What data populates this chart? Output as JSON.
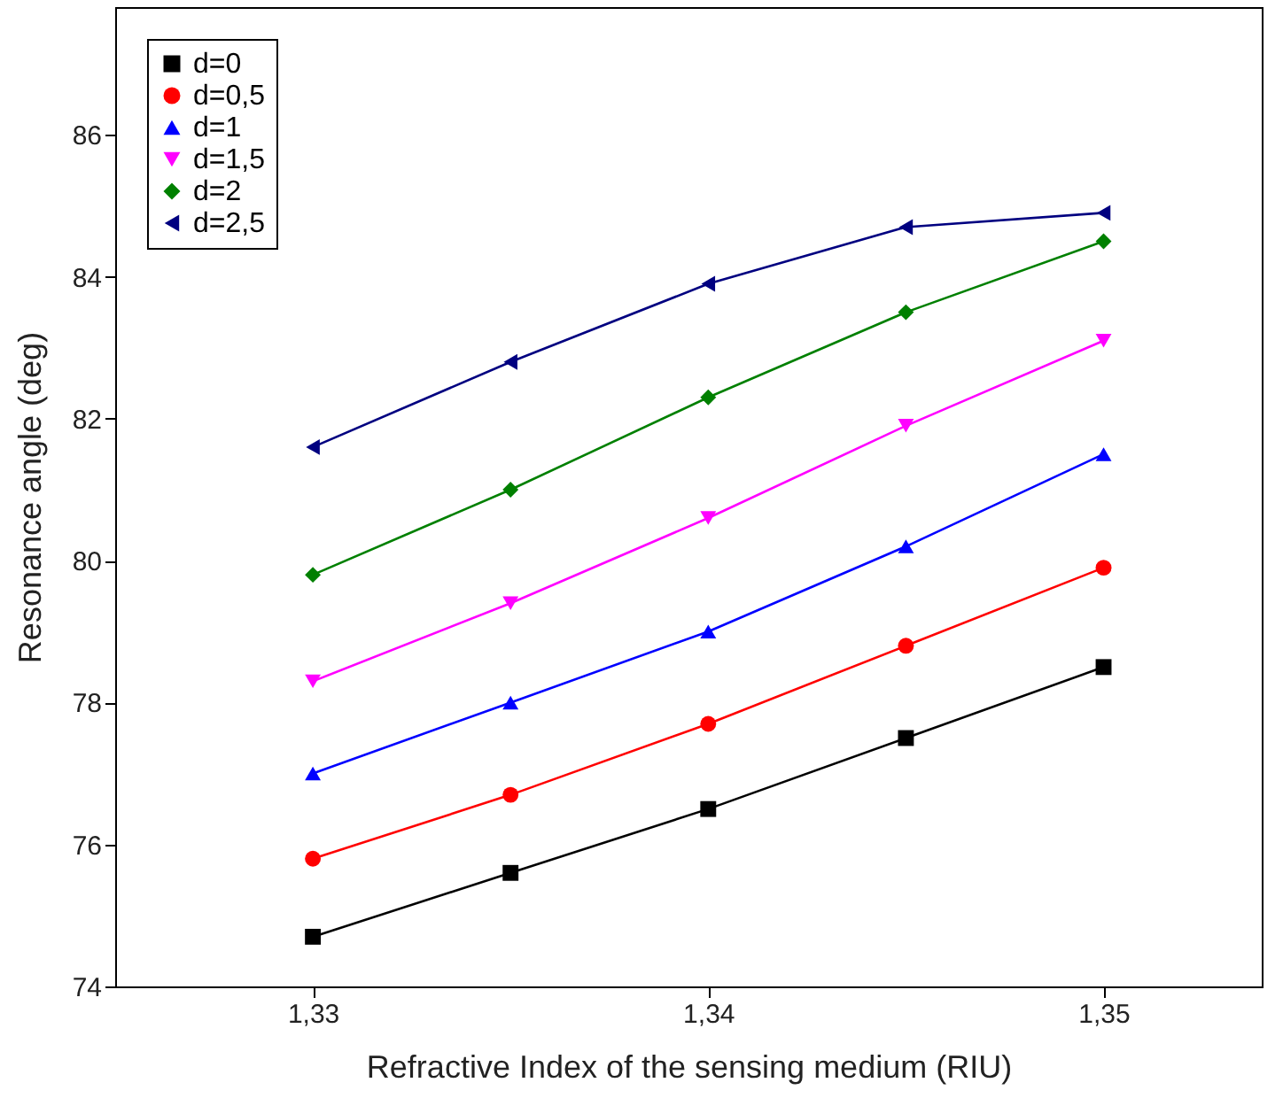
{
  "chart_data": {
    "type": "line",
    "xlabel": "Refractive Index of the sensing medium (RIU)",
    "ylabel": "Resonance angle (deg)",
    "x": [
      1.33,
      1.335,
      1.34,
      1.345,
      1.35
    ],
    "xlim": [
      1.325,
      1.354
    ],
    "xticks": [
      {
        "value": 1.33,
        "label": "1,33"
      },
      {
        "value": 1.34,
        "label": "1,34"
      },
      {
        "value": 1.35,
        "label": "1,35"
      }
    ],
    "ylim": [
      74,
      87.8
    ],
    "yticks": [
      74,
      76,
      78,
      80,
      82,
      84,
      86
    ],
    "grid": false,
    "legend": "top left",
    "line_style": "solid",
    "series": [
      {
        "name": "d=0",
        "color": "#000000",
        "marker": "square",
        "values": [
          74.7,
          75.6,
          76.5,
          77.5,
          78.5
        ]
      },
      {
        "name": "d=0,5",
        "color": "#ff0000",
        "marker": "circle",
        "values": [
          75.8,
          76.7,
          77.7,
          78.8,
          79.9
        ]
      },
      {
        "name": "d=1",
        "color": "#0000ff",
        "marker": "triangle",
        "values": [
          77.0,
          78.0,
          79.0,
          80.2,
          81.5
        ]
      },
      {
        "name": "d=1,5",
        "color": "#ff00ff",
        "marker": "triangle-down",
        "values": [
          78.3,
          79.4,
          80.6,
          81.9,
          83.1
        ]
      },
      {
        "name": "d=2",
        "color": "#008000",
        "marker": "diamond",
        "values": [
          79.8,
          81.0,
          82.3,
          83.5,
          84.5
        ]
      },
      {
        "name": "d=2,5",
        "color": "#000080",
        "marker": "triangle-left",
        "values": [
          81.6,
          82.8,
          83.9,
          84.7,
          84.9
        ]
      }
    ]
  }
}
